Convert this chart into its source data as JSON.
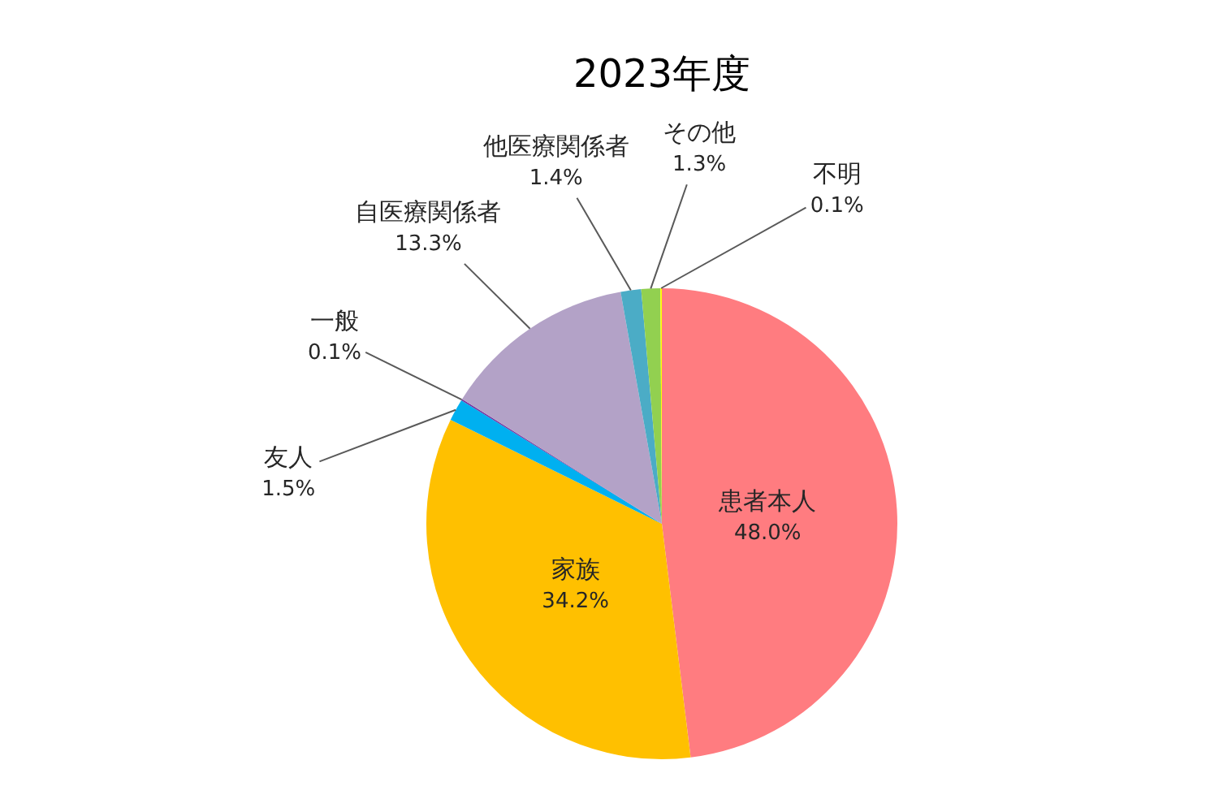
{
  "chart_data": {
    "type": "pie",
    "title": "2023年度",
    "categories": [
      "患者本人",
      "家族",
      "友人",
      "一般",
      "自医療関係者",
      "他医療関係者",
      "その他",
      "不明"
    ],
    "values": [
      48.0,
      34.2,
      1.5,
      0.1,
      13.3,
      1.4,
      1.3,
      0.1
    ],
    "value_labels": [
      "48.0%",
      "34.2%",
      "1.5%",
      "0.1%",
      "13.3%",
      "1.4%",
      "1.3%",
      "0.1%"
    ],
    "colors": [
      "#ff7c80",
      "#ffc000",
      "#00b0f0",
      "#7030a0",
      "#b3a2c7",
      "#4bacc6",
      "#92d050",
      "#ffff00"
    ]
  }
}
